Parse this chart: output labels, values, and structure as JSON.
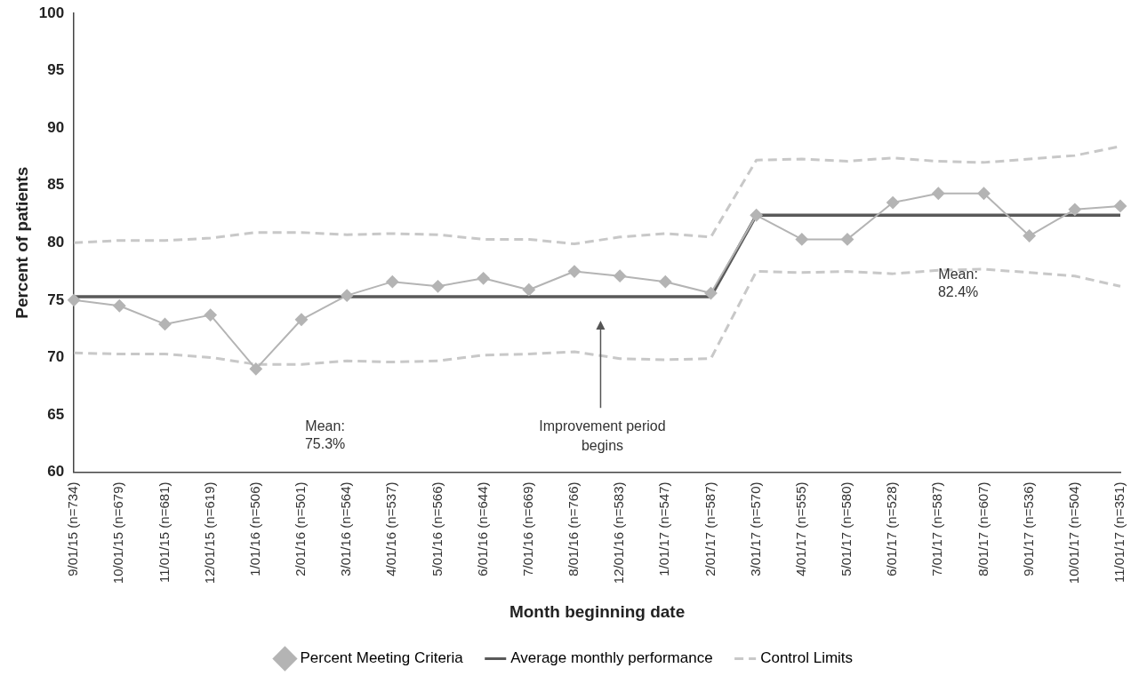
{
  "chart_data": {
    "type": "line",
    "xlabel": "Month beginning date",
    "ylabel": "Percent of patients",
    "categories": [
      "9/01/15 (n=734)",
      "10/01/15 (n=679)",
      "11/01/15 (n=681)",
      "12/01/15 (n=619)",
      "1/01/16 (n=506)",
      "2/01/16 (n=501)",
      "3/01/16 (n=564)",
      "4/01/16 (n=537)",
      "5/01/16 (n=566)",
      "6/01/16 (n=644)",
      "7/01/16 (n=669)",
      "8/01/16 (n=766)",
      "12/01/16 (n=583)",
      "1/01/17 (n=547)",
      "2/01/17 (n=587)",
      "3/01/17 (n=570)",
      "4/01/17 (n=555)",
      "5/01/17 (n=580)",
      "6/01/17 (n=528)",
      "7/01/17 (n=587)",
      "8/01/17 (n=607)",
      "9/01/17 (n=536)",
      "10/01/17 (n=504)",
      "11/01/17 (n=351)"
    ],
    "series": [
      {
        "name": "Percent Meeting Criteria",
        "color": "#b4b4b4",
        "marker": "diamond",
        "line_style": "solid",
        "values": [
          75.0,
          74.5,
          72.9,
          73.7,
          69.0,
          73.3,
          75.4,
          76.6,
          76.2,
          76.9,
          75.9,
          77.5,
          77.1,
          76.6,
          75.6,
          82.4,
          80.3,
          80.3,
          83.5,
          84.3,
          84.3,
          80.6,
          82.9,
          83.2
        ]
      },
      {
        "name": "Average monthly performance",
        "color": "#595959",
        "marker": "none",
        "line_style": "solid",
        "values": [
          75.3,
          75.3,
          75.3,
          75.3,
          75.3,
          75.3,
          75.3,
          75.3,
          75.3,
          75.3,
          75.3,
          75.3,
          75.3,
          75.3,
          75.3,
          82.4,
          82.4,
          82.4,
          82.4,
          82.4,
          82.4,
          82.4,
          82.4,
          82.4
        ]
      },
      {
        "name": "Control Limits",
        "color": "#c8c8c8",
        "marker": "none",
        "line_style": "dashed",
        "values": [
          80.0,
          80.2,
          80.2,
          80.4,
          80.9,
          80.9,
          80.7,
          80.8,
          80.7,
          80.3,
          80.3,
          79.9,
          80.5,
          80.8,
          80.5,
          87.2,
          87.3,
          87.1,
          87.4,
          87.1,
          87.0,
          87.3,
          87.6,
          88.4
        ]
      },
      {
        "color": "#c8c8c8",
        "marker": "none",
        "line_style": "dashed",
        "values": [
          70.4,
          70.3,
          70.3,
          70.0,
          69.4,
          69.4,
          69.7,
          69.6,
          69.7,
          70.2,
          70.3,
          70.5,
          69.9,
          69.8,
          69.9,
          77.5,
          77.4,
          77.5,
          77.3,
          77.6,
          77.7,
          77.4,
          77.1,
          76.2
        ]
      }
    ],
    "ylim": [
      60,
      100
    ],
    "yticks": [
      60,
      65,
      70,
      75,
      80,
      85,
      90,
      95,
      100
    ],
    "grid": false,
    "legend": "bottom",
    "annotations": [
      "Mean: 75.3%",
      "Improvement period begins",
      "Mean: 82.4%"
    ]
  }
}
